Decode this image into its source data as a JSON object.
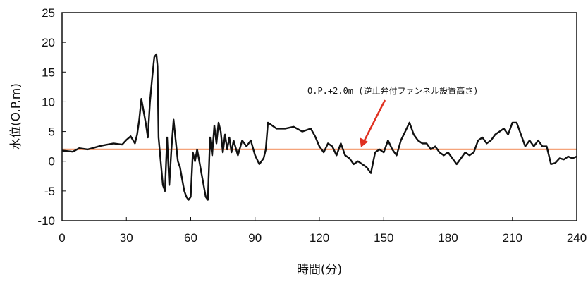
{
  "chart_data": {
    "type": "line",
    "title": "",
    "xlabel": "時間(分)",
    "ylabel": "水位(O.P.m)",
    "xlim": [
      0,
      240
    ],
    "ylim": [
      -10,
      25
    ],
    "x_ticks": [
      0,
      30,
      60,
      90,
      120,
      150,
      180,
      210,
      240
    ],
    "y_ticks": [
      -10,
      -5,
      0,
      5,
      10,
      15,
      20,
      25
    ],
    "grid": false,
    "legend": "none",
    "series": [
      {
        "color": "#111111",
        "x": [
          0,
          5,
          8,
          12,
          18,
          24,
          28,
          30,
          32,
          34,
          35,
          36,
          37,
          38,
          39,
          40,
          41,
          42,
          43,
          44,
          44.5,
          45,
          46,
          47,
          48,
          49,
          50,
          51,
          52,
          53,
          54,
          55,
          56,
          57,
          58,
          59,
          60,
          61,
          62,
          63,
          64,
          65,
          66,
          67,
          68,
          69,
          70,
          71,
          72,
          73,
          74,
          75,
          76,
          77,
          78,
          79,
          80,
          82,
          84,
          86,
          88,
          90,
          92,
          94,
          95,
          96,
          98,
          100,
          104,
          108,
          112,
          116,
          118,
          120,
          122,
          124,
          126,
          128,
          130,
          132,
          134,
          136,
          138,
          140,
          142,
          144,
          146,
          148,
          150,
          152,
          154,
          156,
          158,
          160,
          162,
          164,
          166,
          168,
          170,
          172,
          174,
          176,
          178,
          180,
          182,
          184,
          186,
          188,
          190,
          192,
          194,
          196,
          198,
          200,
          202,
          204,
          206,
          208,
          210,
          212,
          214,
          216,
          218,
          220,
          222,
          224,
          226,
          228,
          230,
          232,
          234,
          236,
          238,
          240
        ],
        "y": [
          1.8,
          1.6,
          2.2,
          2.0,
          2.6,
          3.0,
          2.8,
          3.6,
          4.2,
          3.0,
          4.5,
          7.0,
          10.5,
          8.5,
          6.5,
          4.0,
          10.0,
          14.0,
          17.5,
          18.0,
          16.0,
          4.0,
          0.0,
          -4.0,
          -5.0,
          4.0,
          -4.0,
          2.0,
          7.0,
          3.5,
          0.0,
          -1.0,
          -3.0,
          -5.0,
          -6.0,
          -6.5,
          -6.0,
          1.5,
          0.0,
          2.0,
          0.0,
          -2.0,
          -4.0,
          -6.0,
          -6.5,
          4.0,
          1.0,
          6.0,
          3.0,
          6.5,
          5.0,
          1.5,
          4.5,
          2.0,
          4.0,
          1.5,
          3.5,
          1.0,
          3.5,
          2.5,
          3.5,
          1.0,
          -0.5,
          0.5,
          2.0,
          6.5,
          6.0,
          5.5,
          5.5,
          5.8,
          5.0,
          5.5,
          4.2,
          2.5,
          1.5,
          3.0,
          2.5,
          1.0,
          3.0,
          1.0,
          0.5,
          -0.5,
          0.0,
          -0.5,
          -1.0,
          -2.0,
          1.5,
          2.0,
          1.5,
          3.5,
          2.0,
          1.0,
          3.5,
          5.0,
          6.5,
          4.5,
          3.5,
          3.0,
          3.0,
          2.0,
          2.5,
          1.5,
          1.0,
          1.5,
          0.5,
          -0.5,
          0.5,
          1.5,
          1.0,
          1.5,
          3.5,
          4.0,
          3.0,
          3.5,
          4.5,
          5.0,
          5.5,
          4.5,
          6.5,
          6.5,
          4.5,
          2.5,
          3.5,
          2.5,
          3.5,
          2.5,
          2.5,
          -0.5,
          -0.3,
          0.5,
          0.3,
          0.8,
          0.5,
          0.8
        ]
      },
      {
        "color": "#f5a37a",
        "x": [
          0,
          240
        ],
        "y": [
          2.0,
          2.0
        ]
      }
    ],
    "annotations": [
      {
        "text": "O.P.+2.0m (逆止弁付ファンネル設置高さ)",
        "arrow_color": "#e03020"
      }
    ]
  }
}
